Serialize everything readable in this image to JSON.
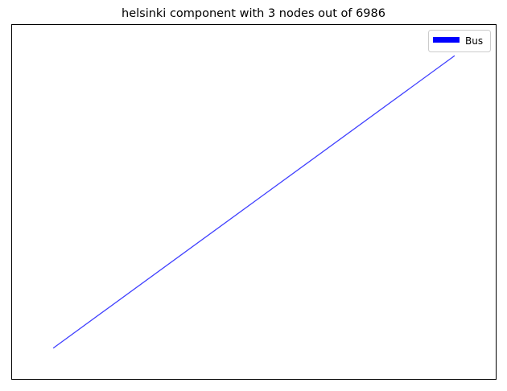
{
  "chart_data": {
    "type": "line",
    "title": "helsinki component with 3 nodes out of 6986",
    "xlabel": "",
    "ylabel": "",
    "axes_ticks": false,
    "grid": false,
    "legend": {
      "placement": "top-right",
      "entries": [
        {
          "label": "Bus",
          "color": "#0000ff"
        }
      ]
    },
    "xlim": [
      0,
      1
    ],
    "ylim": [
      0,
      1
    ],
    "series": [
      {
        "name": "Bus",
        "color": "#0000ff",
        "alpha": 0.75,
        "points": [
          {
            "x": 0.085,
            "y": 0.087
          },
          {
            "x": 0.5,
            "y": 0.5
          },
          {
            "x": 0.915,
            "y": 0.913
          }
        ]
      }
    ]
  }
}
